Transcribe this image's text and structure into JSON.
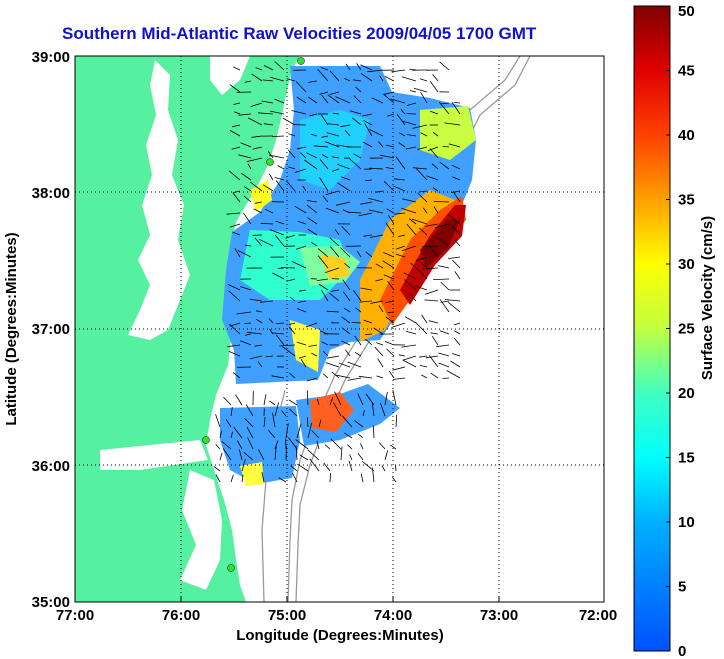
{
  "title": "Southern Mid-Atlantic Raw Velocities 2009/04/05 1700 GMT",
  "xlabel": "Longitude (Degrees:Minutes)",
  "ylabel": "Latitude (Degrees:Minutes)",
  "colorbar_label": "Surface Velocity (cm/s)",
  "x_ticks": [
    "77:00",
    "76:00",
    "75:00",
    "74:00",
    "73:00",
    "72:00"
  ],
  "y_ticks": [
    "39:00",
    "38:00",
    "37:00",
    "36:00",
    "35:00"
  ],
  "colorbar_ticks": [
    "0",
    "5",
    "10",
    "15",
    "20",
    "25",
    "30",
    "35",
    "40",
    "45",
    "50"
  ],
  "colors": {
    "land": "#55f0a0",
    "title": "#1010d0"
  },
  "chart_data": {
    "type": "heatmap",
    "xlim": [
      -77,
      -72
    ],
    "ylim": [
      35,
      39
    ],
    "clim": [
      0,
      50
    ],
    "grid": true,
    "colormap": "jet"
  }
}
